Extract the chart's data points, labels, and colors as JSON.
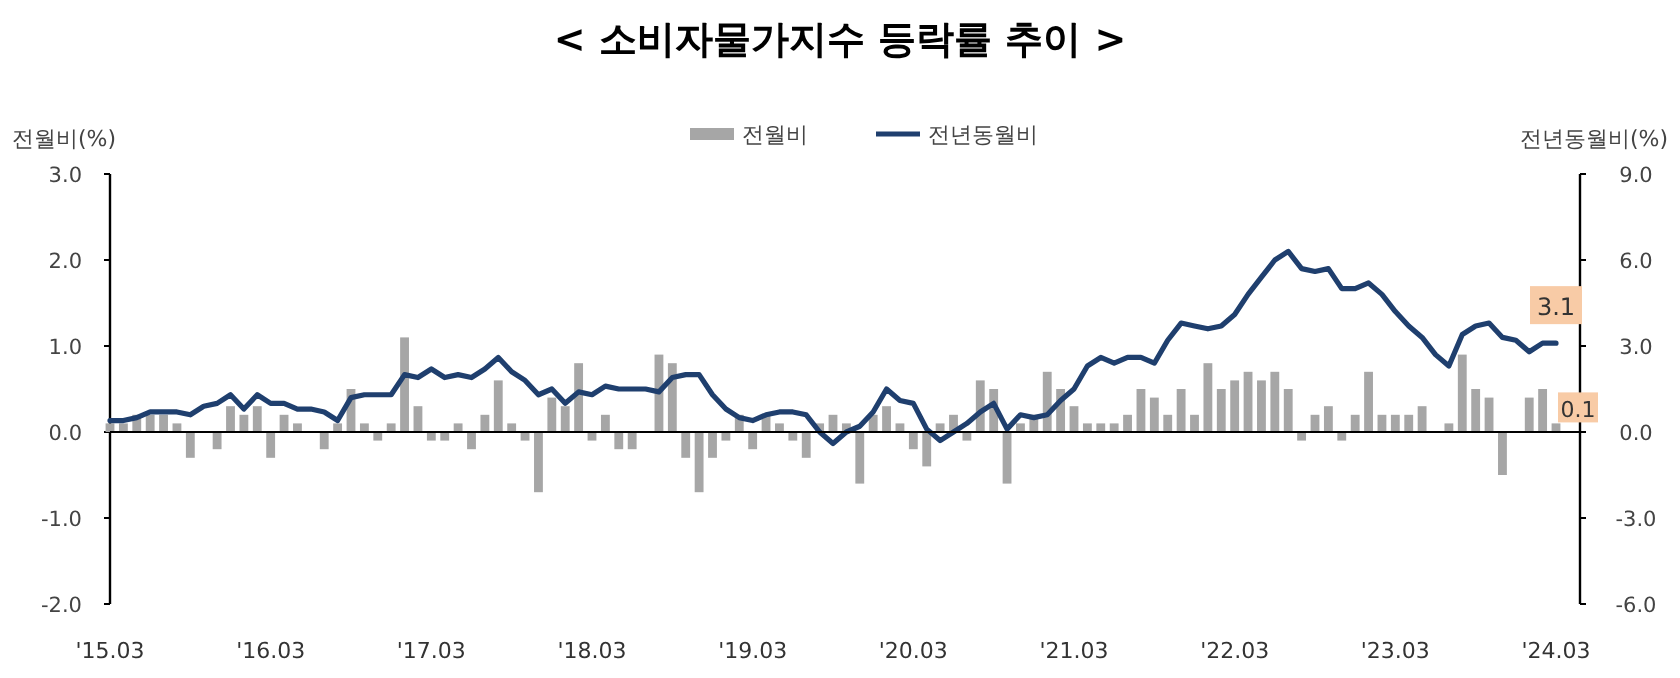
{
  "chart_data": {
    "type": "bar",
    "title": "< 소비자물가지수 등락률 추이 >",
    "ylabel": "전월비(%)",
    "y2label": "전년동월비(%)",
    "legend": "top",
    "categories": [
      "'15.03",
      null,
      null,
      null,
      null,
      null,
      null,
      null,
      null,
      null,
      null,
      null,
      "'16.03",
      null,
      null,
      null,
      null,
      null,
      null,
      null,
      null,
      null,
      null,
      null,
      "'17.03",
      null,
      null,
      null,
      null,
      null,
      null,
      null,
      null,
      null,
      null,
      null,
      "'18.03",
      null,
      null,
      null,
      null,
      null,
      null,
      null,
      null,
      null,
      null,
      null,
      "'19.03",
      null,
      null,
      null,
      null,
      null,
      null,
      null,
      null,
      null,
      null,
      null,
      "'20.03",
      null,
      null,
      null,
      null,
      null,
      null,
      null,
      null,
      null,
      null,
      null,
      "'21.03",
      null,
      null,
      null,
      null,
      null,
      null,
      null,
      null,
      null,
      null,
      null,
      "'22.03",
      null,
      null,
      null,
      null,
      null,
      null,
      null,
      null,
      null,
      null,
      null,
      "'23.03",
      null,
      null,
      null,
      null,
      null,
      null,
      null,
      null,
      null,
      null,
      null,
      "'24.03"
    ],
    "ylim": [
      -2,
      3
    ],
    "yticks": [
      {
        "value": 3,
        "label": "3.0"
      },
      {
        "value": 2,
        "label": "2.0"
      },
      {
        "value": 1,
        "label": "1.0"
      },
      {
        "value": 0,
        "label": "0.0"
      },
      {
        "value": -1,
        "label": "-1.0"
      },
      {
        "value": -2,
        "label": "-2.0"
      }
    ],
    "y2lim": [
      -6,
      9
    ],
    "y2ticks": [
      {
        "value": 9,
        "label": "9.0"
      },
      {
        "value": 6,
        "label": "6.0"
      },
      {
        "value": 3,
        "label": "3.0"
      },
      {
        "value": 0,
        "label": "0.0"
      },
      {
        "value": -3,
        "label": "-3.0"
      },
      {
        "value": -6,
        "label": "-6.0"
      }
    ],
    "series": [
      {
        "name": "전월비",
        "color": "#a6a6a6",
        "values": [
          0.1,
          0.1,
          0.2,
          0.2,
          0.2,
          0.1,
          -0.3,
          0.0,
          -0.2,
          0.3,
          0.2,
          0.3,
          -0.3,
          0.2,
          0.1,
          0.0,
          -0.2,
          0.1,
          0.5,
          0.1,
          -0.1,
          0.1,
          1.1,
          0.3,
          -0.1,
          -0.1,
          0.1,
          -0.2,
          0.2,
          0.6,
          0.1,
          -0.1,
          -0.7,
          0.4,
          0.3,
          0.8,
          -0.1,
          0.2,
          -0.2,
          -0.2,
          0.0,
          0.9,
          0.8,
          -0.3,
          -0.7,
          -0.3,
          -0.1,
          0.2,
          -0.2,
          0.2,
          0.1,
          -0.1,
          -0.3,
          0.1,
          0.2,
          0.1,
          -0.6,
          0.2,
          0.3,
          0.1,
          -0.2,
          -0.4,
          0.1,
          0.2,
          -0.1,
          0.6,
          0.5,
          -0.6,
          0.1,
          0.2,
          0.7,
          0.5,
          0.3,
          0.1,
          0.1,
          0.1,
          0.2,
          0.5,
          0.4,
          0.2,
          0.5,
          0.2,
          0.8,
          0.5,
          0.6,
          0.7,
          0.6,
          0.7,
          0.5,
          -0.1,
          0.2,
          0.3,
          -0.1,
          0.2,
          0.7,
          0.2,
          0.2,
          0.2,
          0.3,
          0.0,
          0.1,
          0.9,
          0.5,
          0.4,
          -0.5,
          0.0,
          0.4,
          0.5,
          0.1
        ],
        "value_labels": [
          null,
          null,
          null,
          null,
          null,
          null,
          null,
          null,
          null,
          null,
          null,
          null,
          null,
          null,
          null,
          null,
          null,
          null,
          null,
          null,
          null,
          null,
          null,
          null,
          null,
          null,
          null,
          null,
          null,
          null,
          null,
          null,
          null,
          null,
          null,
          null,
          null,
          null,
          null,
          null,
          null,
          null,
          null,
          null,
          null,
          null,
          null,
          null,
          null,
          null,
          null,
          null,
          null,
          null,
          null,
          null,
          null,
          null,
          null,
          null,
          null,
          null,
          null,
          null,
          null,
          null,
          null,
          null,
          null,
          null,
          null,
          null,
          null,
          null,
          null,
          null,
          null,
          null,
          null,
          null,
          null,
          null,
          null,
          null,
          null,
          null,
          null,
          null,
          null,
          null,
          null,
          null,
          null,
          null,
          null,
          null,
          null,
          null,
          null,
          null,
          null,
          null,
          null,
          null,
          null,
          null,
          null,
          null,
          "0.1"
        ]
      },
      {
        "name": "전년동월비",
        "type": "line",
        "axis": "y2",
        "color": "#1f3f6e",
        "values": [
          0.4,
          0.4,
          0.5,
          0.7,
          0.7,
          0.7,
          0.6,
          0.9,
          1.0,
          1.3,
          0.8,
          1.3,
          1.0,
          1.0,
          0.8,
          0.8,
          0.7,
          0.4,
          1.2,
          1.3,
          1.3,
          1.3,
          2.0,
          1.9,
          2.2,
          1.9,
          2.0,
          1.9,
          2.2,
          2.6,
          2.1,
          1.8,
          1.3,
          1.5,
          1.0,
          1.4,
          1.3,
          1.6,
          1.5,
          1.5,
          1.5,
          1.4,
          1.9,
          2.0,
          2.0,
          1.3,
          0.8,
          0.5,
          0.4,
          0.6,
          0.7,
          0.7,
          0.6,
          0.0,
          -0.4,
          0.0,
          0.2,
          0.7,
          1.5,
          1.1,
          1.0,
          0.1,
          -0.3,
          0.0,
          0.3,
          0.7,
          1.0,
          0.1,
          0.6,
          0.5,
          0.6,
          1.1,
          1.5,
          2.3,
          2.6,
          2.4,
          2.6,
          2.6,
          2.4,
          3.2,
          3.8,
          3.7,
          3.6,
          3.7,
          4.1,
          4.8,
          5.4,
          6.0,
          6.3,
          5.7,
          5.6,
          5.7,
          5.0,
          5.0,
          5.2,
          4.8,
          4.2,
          3.7,
          3.3,
          2.7,
          2.3,
          3.4,
          3.7,
          3.8,
          3.3,
          3.2,
          2.8,
          3.1,
          3.1
        ],
        "value_labels": [
          null,
          null,
          null,
          null,
          null,
          null,
          null,
          null,
          null,
          null,
          null,
          null,
          null,
          null,
          null,
          null,
          null,
          null,
          null,
          null,
          null,
          null,
          null,
          null,
          null,
          null,
          null,
          null,
          null,
          null,
          null,
          null,
          null,
          null,
          null,
          null,
          null,
          null,
          null,
          null,
          null,
          null,
          null,
          null,
          null,
          null,
          null,
          null,
          null,
          null,
          null,
          null,
          null,
          null,
          null,
          null,
          null,
          null,
          null,
          null,
          null,
          null,
          null,
          null,
          null,
          null,
          null,
          null,
          null,
          null,
          null,
          null,
          null,
          null,
          null,
          null,
          null,
          null,
          null,
          null,
          null,
          null,
          null,
          null,
          null,
          null,
          null,
          null,
          null,
          null,
          null,
          null,
          null,
          null,
          null,
          null,
          null,
          null,
          null,
          null,
          null,
          null,
          null,
          null,
          null,
          null,
          null,
          null,
          "3.1"
        ]
      }
    ]
  }
}
